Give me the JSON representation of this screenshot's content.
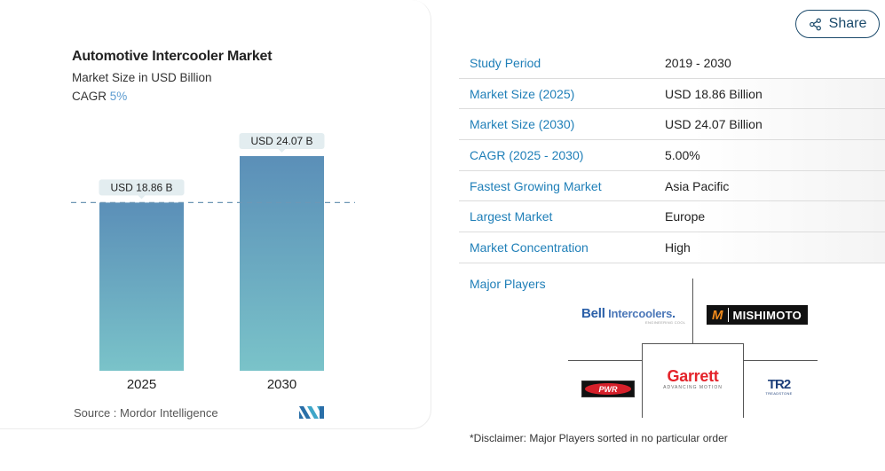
{
  "chart_data": {
    "type": "bar",
    "title": "Automotive Intercooler Market",
    "subtitle": "Market Size in USD Billion",
    "cagr_label": "CAGR",
    "cagr_value": "5%",
    "categories": [
      "2025",
      "2030"
    ],
    "values": [
      18.86,
      24.07
    ],
    "data_labels": [
      "USD 18.86 B",
      "USD 24.07 B"
    ],
    "xlabel": "",
    "ylabel": "",
    "ylim": [
      0,
      24.07
    ],
    "reference_line": 18.86,
    "grid": false,
    "colors": {
      "bar_top": "#5b8fb8",
      "bar_bottom": "#7ac3c9",
      "tag_bg": "#e3edf0",
      "dash": "#6e97b5"
    },
    "source": "Source :  Mordor Intelligence"
  },
  "share": {
    "label": "Share",
    "icon": "share-icon"
  },
  "facts": [
    {
      "label": "Study Period",
      "value": "2019 - 2030"
    },
    {
      "label": "Market Size (2025)",
      "value": "USD 18.86 Billion"
    },
    {
      "label": "Market Size (2030)",
      "value": "USD 24.07 Billion"
    },
    {
      "label": "CAGR (2025 - 2030)",
      "value": "5.00%"
    },
    {
      "label": "Fastest Growing Market",
      "value": "Asia Pacific"
    },
    {
      "label": "Largest Market",
      "value": "Europe"
    },
    {
      "label": "Market Concentration",
      "value": "High"
    }
  ],
  "major_players": {
    "label": "Major Players",
    "logos": {
      "bell": {
        "b": "Bell",
        "rest": " Intercoolers",
        "dot": ".",
        "tag": "ENGINEERING COOL"
      },
      "mishimoto": {
        "mark": "M",
        "name": "MISHIMOTO"
      },
      "garrett": {
        "name": "Garrett",
        "tag": "ADVANCING MOTION"
      },
      "pwr": {
        "name": "PWR"
      },
      "treadstone": {
        "name": "TR2",
        "tag": "TREADSTONE"
      }
    }
  },
  "disclaimer": "*Disclaimer: Major Players sorted in no particular order"
}
